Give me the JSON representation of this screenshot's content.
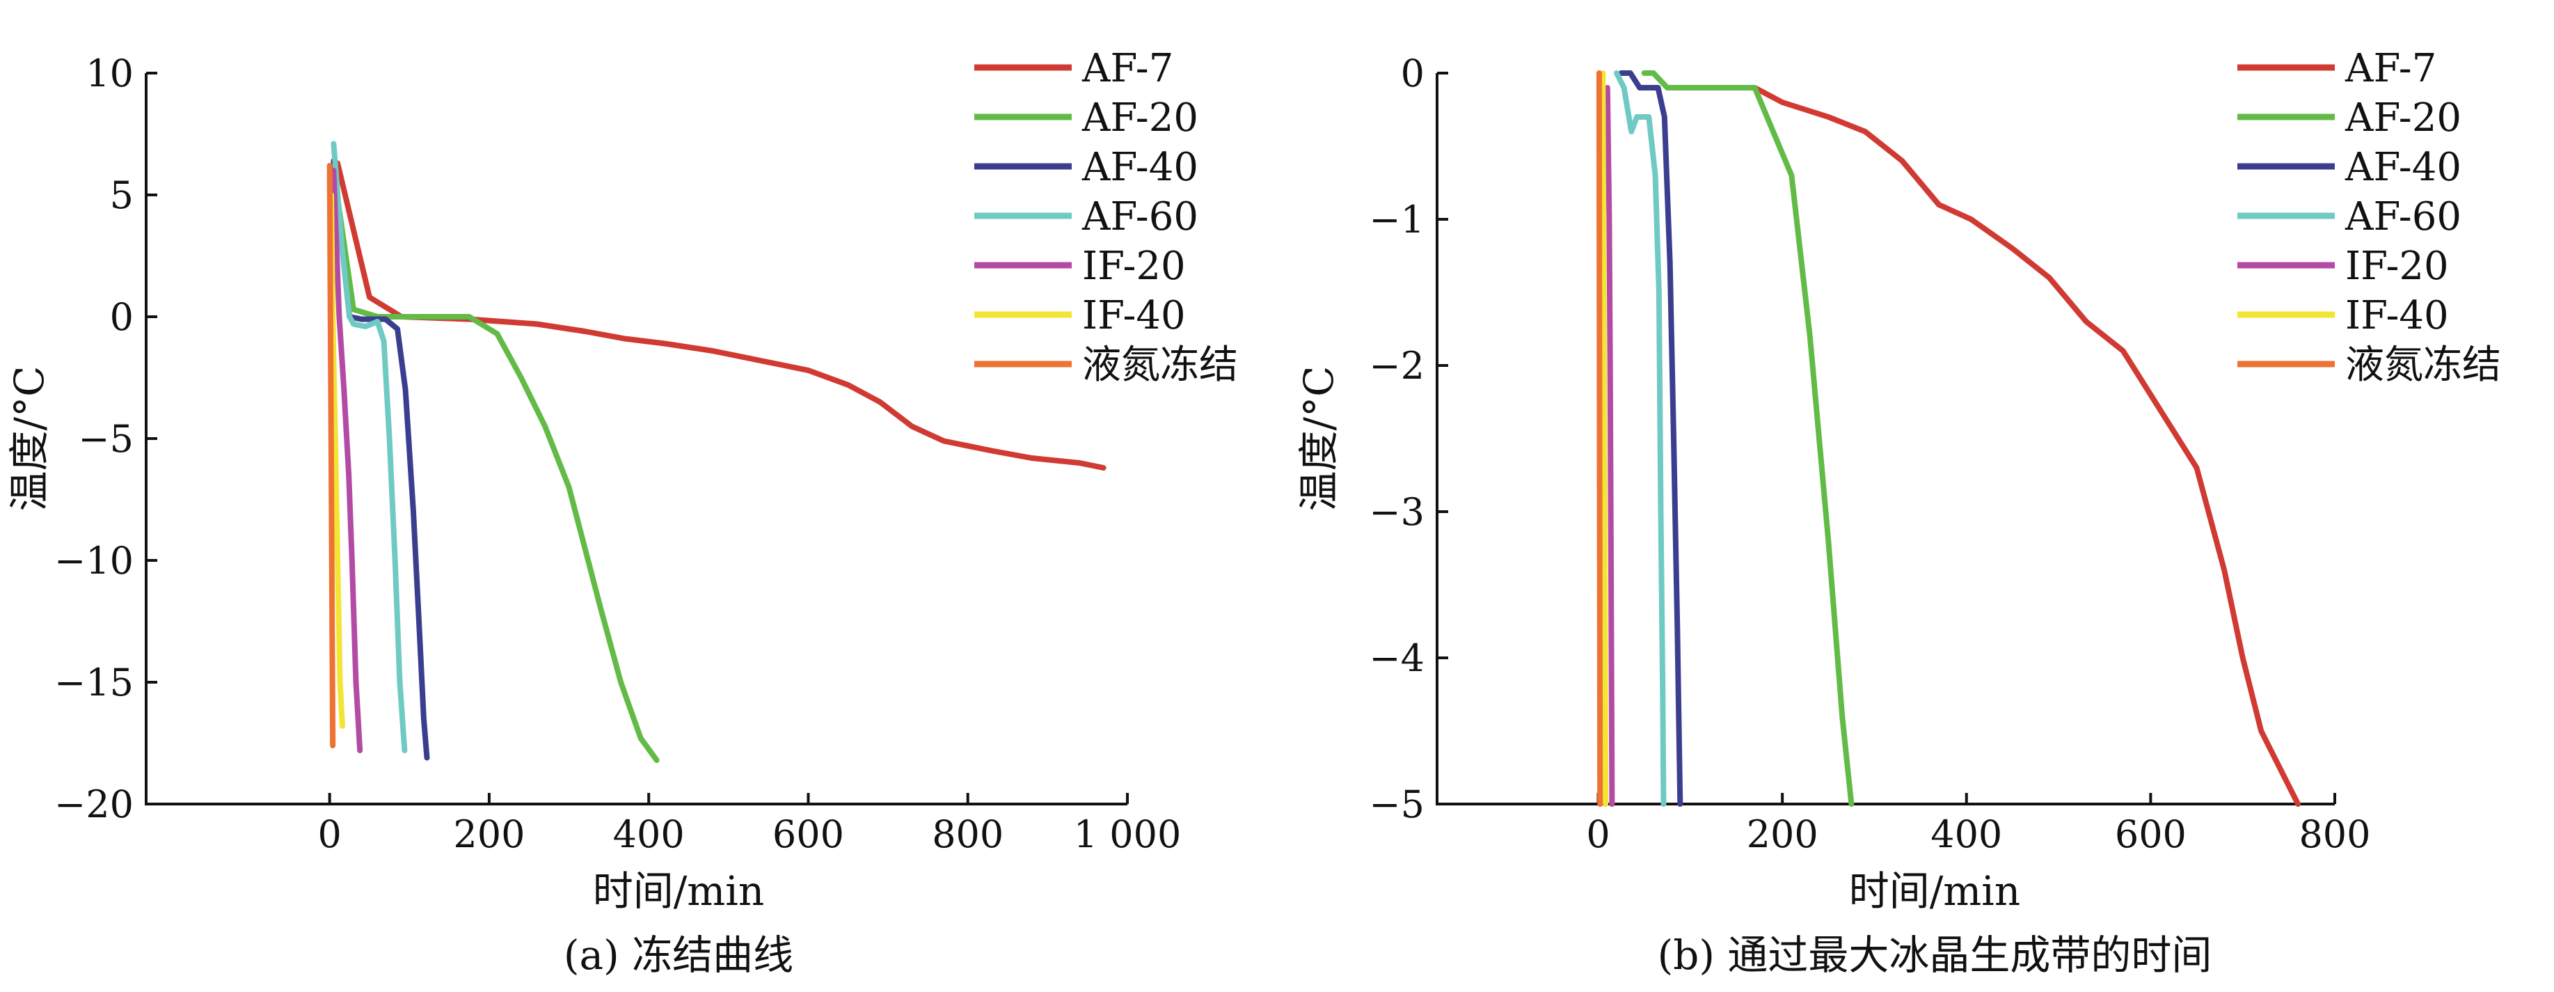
{
  "chart_data": [
    {
      "type": "line",
      "caption": "(a) 冻结曲线",
      "xlabel": "时间/min",
      "ylabel": "温度/°C",
      "xlim": [
        -230,
        1000
      ],
      "ylim": [
        -20,
        10
      ],
      "xticks": [
        0,
        200,
        400,
        600,
        800,
        1000
      ],
      "xtick_labels": [
        "0",
        "200",
        "400",
        "600",
        "800",
        "1 000"
      ],
      "yticks": [
        10,
        5,
        0,
        -5,
        -10,
        -15,
        -20
      ],
      "ytick_labels": [
        "10",
        "5",
        "0",
        "−5",
        "−10",
        "−15",
        "−20"
      ],
      "legend_position": "top-right",
      "series": [
        {
          "name": "AF-7",
          "color": "#d03a33",
          "points": [
            [
              10,
              6.3
            ],
            [
              50,
              0.8
            ],
            [
              90,
              0
            ],
            [
              175,
              -0.1
            ],
            [
              260,
              -0.3
            ],
            [
              320,
              -0.6
            ],
            [
              370,
              -0.9
            ],
            [
              420,
              -1.1
            ],
            [
              480,
              -1.4
            ],
            [
              540,
              -1.8
            ],
            [
              600,
              -2.2
            ],
            [
              650,
              -2.8
            ],
            [
              690,
              -3.5
            ],
            [
              730,
              -4.5
            ],
            [
              770,
              -5.1
            ],
            [
              830,
              -5.5
            ],
            [
              880,
              -5.8
            ],
            [
              940,
              -6.0
            ],
            [
              970,
              -6.2
            ]
          ]
        },
        {
          "name": "AF-20",
          "color": "#62bb46",
          "points": [
            [
              5,
              6.0
            ],
            [
              30,
              0.3
            ],
            [
              60,
              0
            ],
            [
              175,
              0
            ],
            [
              210,
              -0.7
            ],
            [
              240,
              -2.5
            ],
            [
              270,
              -4.5
            ],
            [
              300,
              -7.0
            ],
            [
              320,
              -9.5
            ],
            [
              340,
              -12.0
            ],
            [
              365,
              -15.0
            ],
            [
              390,
              -17.3
            ],
            [
              410,
              -18.2
            ]
          ]
        },
        {
          "name": "AF-40",
          "color": "#3b3e8f",
          "points": [
            [
              5,
              6.4
            ],
            [
              15,
              3.0
            ],
            [
              25,
              0
            ],
            [
              40,
              -0.1
            ],
            [
              70,
              -0.1
            ],
            [
              85,
              -0.5
            ],
            [
              95,
              -3.0
            ],
            [
              105,
              -8.0
            ],
            [
              112,
              -12.5
            ],
            [
              118,
              -16.5
            ],
            [
              122,
              -18.1
            ]
          ]
        },
        {
          "name": "AF-60",
          "color": "#6fcac4",
          "points": [
            [
              5,
              7.1
            ],
            [
              15,
              3.0
            ],
            [
              25,
              0
            ],
            [
              30,
              -0.3
            ],
            [
              45,
              -0.4
            ],
            [
              60,
              -0.2
            ],
            [
              68,
              -1.0
            ],
            [
              75,
              -5.0
            ],
            [
              82,
              -10.0
            ],
            [
              88,
              -15.0
            ],
            [
              94,
              -17.8
            ]
          ]
        },
        {
          "name": "IF-20",
          "color": "#b34aa4",
          "points": [
            [
              5,
              6.0
            ],
            [
              12,
              0
            ],
            [
              18,
              -3.0
            ],
            [
              24,
              -6.5
            ],
            [
              28,
              -10.0
            ],
            [
              33,
              -15.0
            ],
            [
              38,
              -17.8
            ]
          ]
        },
        {
          "name": "IF-40",
          "color": "#f2e533",
          "points": [
            [
              2,
              5.0
            ],
            [
              4,
              0
            ],
            [
              7,
              -5.0
            ],
            [
              10,
              -10.0
            ],
            [
              13,
              -15.0
            ],
            [
              16,
              -16.8
            ]
          ]
        },
        {
          "name": "液氮冻结",
          "color": "#ee7233",
          "points": [
            [
              0,
              6.2
            ],
            [
              1,
              0
            ],
            [
              2,
              -6.0
            ],
            [
              3,
              -12.0
            ],
            [
              4,
              -17.6
            ]
          ]
        }
      ]
    },
    {
      "type": "line",
      "caption": "(b) 通过最大冰晶生成带的时间",
      "xlabel": "时间/min",
      "ylabel": "温度/°C",
      "xlim": [
        -175,
        800
      ],
      "ylim": [
        -5,
        0
      ],
      "xticks": [
        0,
        200,
        400,
        600,
        800
      ],
      "xtick_labels": [
        "0",
        "200",
        "400",
        "600",
        "800"
      ],
      "yticks": [
        0,
        -1,
        -2,
        -3,
        -4,
        -5
      ],
      "ytick_labels": [
        "0",
        "−1",
        "−2",
        "−3",
        "−4",
        "−5"
      ],
      "legend_position": "top-right",
      "series": [
        {
          "name": "AF-7",
          "color": "#d03a33",
          "points": [
            [
              170,
              -0.1
            ],
            [
              200,
              -0.2
            ],
            [
              250,
              -0.3
            ],
            [
              290,
              -0.4
            ],
            [
              330,
              -0.6
            ],
            [
              370,
              -0.9
            ],
            [
              405,
              -1.0
            ],
            [
              450,
              -1.2
            ],
            [
              490,
              -1.4
            ],
            [
              530,
              -1.7
            ],
            [
              570,
              -1.9
            ],
            [
              610,
              -2.3
            ],
            [
              650,
              -2.7
            ],
            [
              680,
              -3.4
            ],
            [
              700,
              -4.0
            ],
            [
              720,
              -4.5
            ],
            [
              760,
              -5.0
            ]
          ]
        },
        {
          "name": "AF-20",
          "color": "#62bb46",
          "points": [
            [
              50,
              0
            ],
            [
              60,
              0
            ],
            [
              75,
              -0.1
            ],
            [
              170,
              -0.1
            ],
            [
              210,
              -0.7
            ],
            [
              230,
              -1.8
            ],
            [
              250,
              -3.2
            ],
            [
              265,
              -4.4
            ],
            [
              275,
              -5.0
            ]
          ]
        },
        {
          "name": "AF-40",
          "color": "#3b3e8f",
          "points": [
            [
              25,
              0
            ],
            [
              35,
              0
            ],
            [
              45,
              -0.1
            ],
            [
              65,
              -0.1
            ],
            [
              72,
              -0.3
            ],
            [
              78,
              -1.3
            ],
            [
              82,
              -2.5
            ],
            [
              86,
              -3.8
            ],
            [
              89,
              -5.0
            ]
          ]
        },
        {
          "name": "AF-60",
          "color": "#6fcac4",
          "points": [
            [
              20,
              0
            ],
            [
              28,
              -0.1
            ],
            [
              36,
              -0.4
            ],
            [
              42,
              -0.3
            ],
            [
              55,
              -0.3
            ],
            [
              62,
              -0.7
            ],
            [
              66,
              -1.5
            ],
            [
              68,
              -3.0
            ],
            [
              70,
              -4.2
            ],
            [
              71,
              -5.0
            ]
          ]
        },
        {
          "name": "IF-20",
          "color": "#b34aa4",
          "points": [
            [
              10,
              -0.1
            ],
            [
              12,
              -1.0
            ],
            [
              13,
              -2.0
            ],
            [
              14,
              -3.5
            ],
            [
              15,
              -5.0
            ]
          ]
        },
        {
          "name": "IF-40",
          "color": "#f2e533",
          "points": [
            [
              5,
              0
            ],
            [
              6,
              -1.5
            ],
            [
              7,
              -3.0
            ],
            [
              8,
              -5.0
            ]
          ]
        },
        {
          "name": "液氮冻结",
          "color": "#ee7233",
          "points": [
            [
              1,
              0
            ],
            [
              1.5,
              -2.5
            ],
            [
              2,
              -5.0
            ]
          ]
        }
      ]
    }
  ]
}
